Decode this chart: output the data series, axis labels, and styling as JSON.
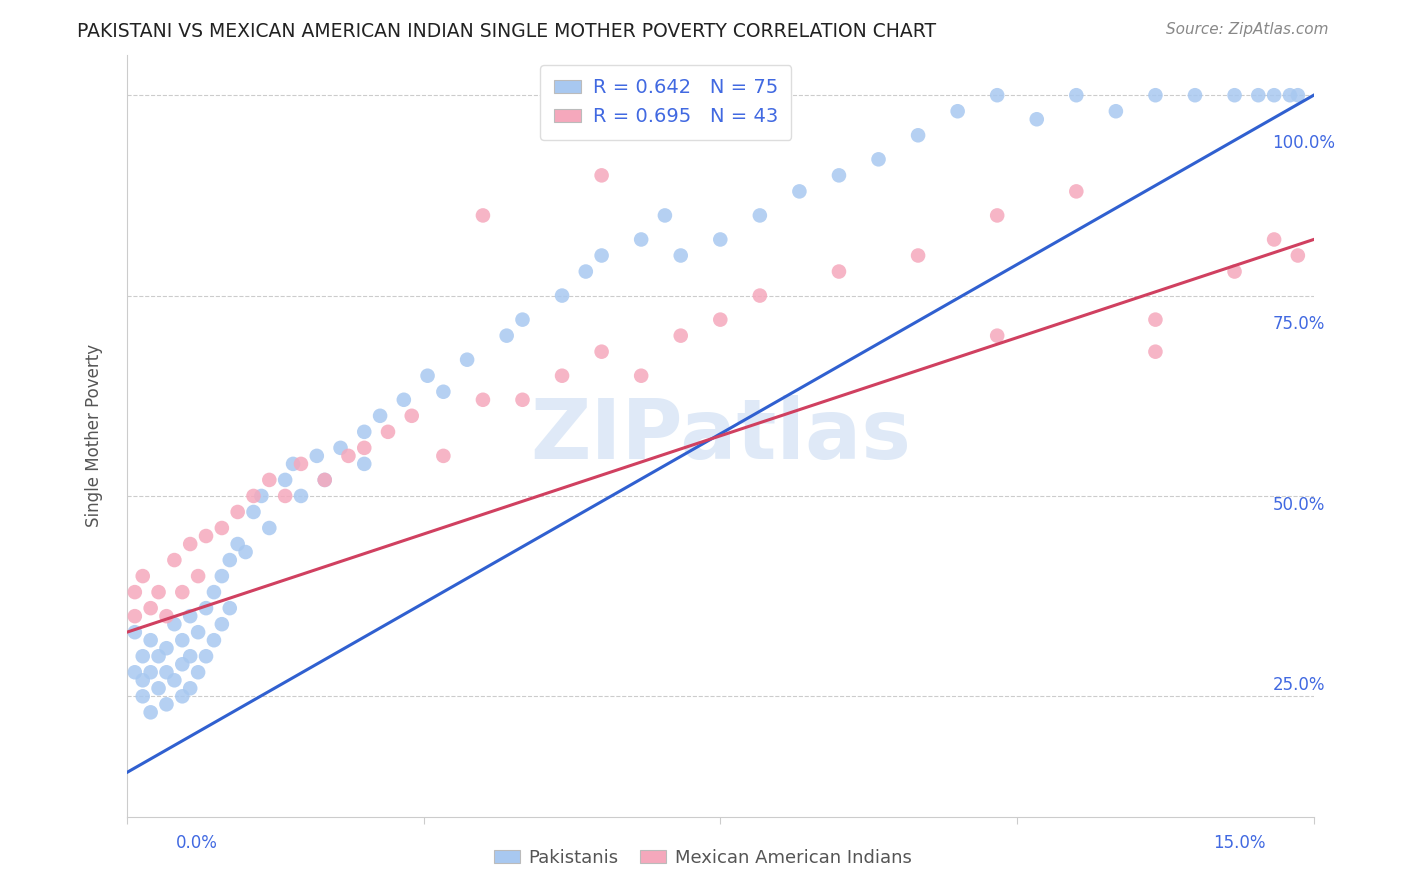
{
  "title": "PAKISTANI VS MEXICAN AMERICAN INDIAN SINGLE MOTHER POVERTY CORRELATION CHART",
  "source": "Source: ZipAtlas.com",
  "ylabel": "Single Mother Poverty",
  "blue_color": "#a8c8f0",
  "pink_color": "#f5a8bc",
  "blue_line_color": "#3060d0",
  "pink_line_color": "#d04060",
  "blue_legend_label": "R = 0.642   N = 75",
  "pink_legend_label": "R = 0.695   N = 43",
  "bottom_blue_label": "Pakistanis",
  "bottom_pink_label": "Mexican American Indians",
  "watermark_text": "ZIPatlas",
  "xmin": 0.0,
  "xmax": 0.15,
  "ymin": 0.1,
  "ymax": 1.05,
  "ytick_vals": [
    0.25,
    0.5,
    0.75,
    1.0
  ],
  "ytick_labels": [
    "25.0%",
    "50.0%",
    "75.0%",
    "100.0%"
  ],
  "xtick_vals": [
    0.0,
    0.0375,
    0.075,
    0.1125,
    0.15
  ],
  "blue_line_x0": 0.0,
  "blue_line_y0": 0.155,
  "blue_line_x1": 0.15,
  "blue_line_y1": 1.0,
  "pink_line_x0": 0.0,
  "pink_line_y0": 0.33,
  "pink_line_x1": 0.15,
  "pink_line_y1": 0.82,
  "blue_x": [
    0.001,
    0.001,
    0.002,
    0.002,
    0.002,
    0.003,
    0.003,
    0.003,
    0.004,
    0.004,
    0.005,
    0.005,
    0.005,
    0.006,
    0.006,
    0.007,
    0.007,
    0.007,
    0.008,
    0.008,
    0.008,
    0.009,
    0.009,
    0.01,
    0.01,
    0.011,
    0.011,
    0.012,
    0.012,
    0.013,
    0.013,
    0.014,
    0.015,
    0.016,
    0.017,
    0.018,
    0.02,
    0.021,
    0.022,
    0.024,
    0.025,
    0.027,
    0.03,
    0.03,
    0.032,
    0.035,
    0.038,
    0.04,
    0.043,
    0.048,
    0.05,
    0.055,
    0.058,
    0.06,
    0.065,
    0.068,
    0.07,
    0.075,
    0.08,
    0.085,
    0.09,
    0.095,
    0.1,
    0.105,
    0.11,
    0.115,
    0.12,
    0.125,
    0.13,
    0.135,
    0.14,
    0.143,
    0.145,
    0.147,
    0.148
  ],
  "blue_y": [
    0.33,
    0.28,
    0.3,
    0.27,
    0.25,
    0.32,
    0.28,
    0.23,
    0.3,
    0.26,
    0.31,
    0.28,
    0.24,
    0.34,
    0.27,
    0.32,
    0.29,
    0.25,
    0.35,
    0.3,
    0.26,
    0.33,
    0.28,
    0.36,
    0.3,
    0.38,
    0.32,
    0.4,
    0.34,
    0.42,
    0.36,
    0.44,
    0.43,
    0.48,
    0.5,
    0.46,
    0.52,
    0.54,
    0.5,
    0.55,
    0.52,
    0.56,
    0.58,
    0.54,
    0.6,
    0.62,
    0.65,
    0.63,
    0.67,
    0.7,
    0.72,
    0.75,
    0.78,
    0.8,
    0.82,
    0.85,
    0.8,
    0.82,
    0.85,
    0.88,
    0.9,
    0.92,
    0.95,
    0.98,
    1.0,
    0.97,
    1.0,
    0.98,
    1.0,
    1.0,
    1.0,
    1.0,
    1.0,
    1.0,
    1.0
  ],
  "pink_x": [
    0.001,
    0.001,
    0.002,
    0.003,
    0.004,
    0.005,
    0.006,
    0.007,
    0.008,
    0.009,
    0.01,
    0.012,
    0.014,
    0.016,
    0.018,
    0.02,
    0.022,
    0.025,
    0.028,
    0.03,
    0.033,
    0.036,
    0.04,
    0.045,
    0.05,
    0.055,
    0.06,
    0.065,
    0.07,
    0.075,
    0.08,
    0.09,
    0.1,
    0.11,
    0.12,
    0.13,
    0.14,
    0.145,
    0.148,
    0.045,
    0.06,
    0.11,
    0.13
  ],
  "pink_y": [
    0.38,
    0.35,
    0.4,
    0.36,
    0.38,
    0.35,
    0.42,
    0.38,
    0.44,
    0.4,
    0.45,
    0.46,
    0.48,
    0.5,
    0.52,
    0.5,
    0.54,
    0.52,
    0.55,
    0.56,
    0.58,
    0.6,
    0.55,
    0.62,
    0.62,
    0.65,
    0.68,
    0.65,
    0.7,
    0.72,
    0.75,
    0.78,
    0.8,
    0.85,
    0.88,
    0.72,
    0.78,
    0.82,
    0.8,
    0.85,
    0.9,
    0.7,
    0.68
  ]
}
